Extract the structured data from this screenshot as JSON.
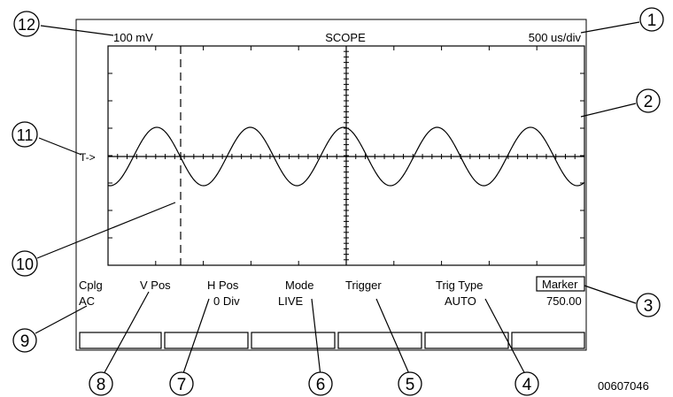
{
  "header": {
    "volts_per_div": "100 mV",
    "title": "SCOPE",
    "time_per_div": "500 us/div"
  },
  "trigger_marker": "T->",
  "menu": {
    "coupling": {
      "label": "Cplg",
      "value": "AC"
    },
    "v_pos": {
      "label": "V Pos",
      "value": ""
    },
    "h_pos": {
      "label": "H Pos",
      "value": "0 Div"
    },
    "mode": {
      "label": "Mode",
      "value": "LIVE"
    },
    "trigger": {
      "label": "Trigger",
      "value": ""
    },
    "trig_type": {
      "label": "Trig Type",
      "value": "AUTO"
    },
    "marker": {
      "label": "Marker",
      "value": "750.00"
    }
  },
  "callouts": [
    "1",
    "2",
    "3",
    "4",
    "5",
    "6",
    "7",
    "8",
    "9",
    "10",
    "11",
    "12"
  ],
  "figure_id": "00607046",
  "colors": {
    "stroke": "#000000",
    "background": "#ffffff"
  }
}
